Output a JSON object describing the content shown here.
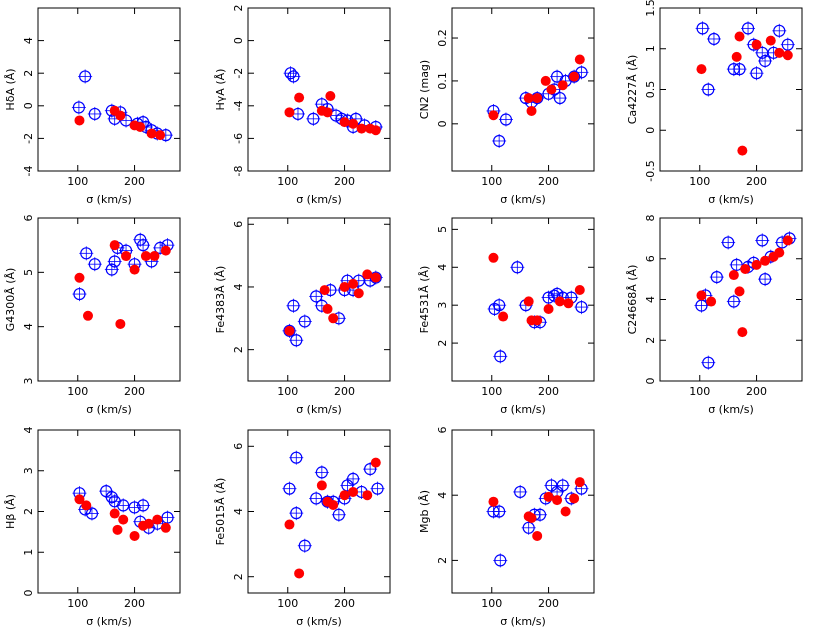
{
  "chart_data": [
    {
      "type": "scatter",
      "ylabel": "HδA (Å)",
      "xlabel": "σ (km/s)",
      "xlim": [
        30,
        280
      ],
      "xticks": [
        100,
        200
      ],
      "ylim": [
        -4,
        6
      ],
      "yticks": [
        -4,
        -2,
        0,
        2,
        4
      ],
      "series": [
        {
          "color": "#0000ff",
          "marker": "open",
          "x": [
            102,
            113,
            130,
            160,
            165,
            175,
            185,
            205,
            215,
            220,
            230,
            240,
            255
          ],
          "values": [
            -0.1,
            1.8,
            -0.5,
            -0.3,
            -0.8,
            -0.4,
            -0.9,
            -1.1,
            -1.0,
            -1.3,
            -1.5,
            -1.7,
            -1.8
          ]
        },
        {
          "color": "#ff0000",
          "marker": "filled",
          "x": [
            103,
            165,
            175,
            200,
            210,
            230,
            245
          ],
          "values": [
            -0.9,
            -0.3,
            -0.6,
            -1.2,
            -1.3,
            -1.7,
            -1.8
          ]
        }
      ]
    },
    {
      "type": "scatter",
      "ylabel": "HγA (Å)",
      "xlabel": "σ (km/s)",
      "xlim": [
        30,
        280
      ],
      "xticks": [
        100,
        200
      ],
      "ylim": [
        -8,
        2
      ],
      "yticks": [
        -8,
        -6,
        -4,
        -2,
        0,
        2
      ],
      "series": [
        {
          "color": "#0000ff",
          "marker": "open",
          "x": [
            105,
            110,
            118,
            145,
            160,
            170,
            185,
            195,
            205,
            215,
            220,
            235,
            255
          ],
          "values": [
            -2.0,
            -2.2,
            -4.5,
            -4.8,
            -3.9,
            -4.2,
            -4.6,
            -4.8,
            -4.9,
            -5.3,
            -4.8,
            -5.2,
            -5.3
          ]
        },
        {
          "color": "#ff0000",
          "marker": "filled",
          "x": [
            103,
            120,
            160,
            170,
            175,
            200,
            215,
            230,
            245,
            255
          ],
          "values": [
            -4.4,
            -3.5,
            -4.3,
            -4.4,
            -3.4,
            -5.0,
            -5.1,
            -5.4,
            -5.4,
            -5.5
          ]
        }
      ]
    },
    {
      "type": "scatter",
      "ylabel": "CN2 (mag)",
      "xlabel": "σ (km/s)",
      "xlim": [
        30,
        280
      ],
      "xticks": [
        100,
        200
      ],
      "ylim": [
        -0.11,
        0.27
      ],
      "yticks": [
        0,
        0.1,
        0.2
      ],
      "series": [
        {
          "color": "#0000ff",
          "marker": "open",
          "x": [
            103,
            113,
            125,
            160,
            170,
            180,
            200,
            210,
            215,
            220,
            230,
            245,
            258
          ],
          "values": [
            0.03,
            -0.04,
            0.01,
            0.06,
            0.05,
            0.06,
            0.07,
            0.08,
            0.11,
            0.06,
            0.1,
            0.11,
            0.12
          ]
        },
        {
          "color": "#ff0000",
          "marker": "filled",
          "x": [
            103,
            165,
            170,
            180,
            195,
            205,
            225,
            245,
            255
          ],
          "values": [
            0.02,
            0.06,
            0.03,
            0.06,
            0.1,
            0.08,
            0.09,
            0.11,
            0.15
          ]
        }
      ]
    },
    {
      "type": "scatter",
      "ylabel": "Ca4227Å (Å)",
      "xlabel": "σ (km/s)",
      "xlim": [
        30,
        280
      ],
      "xticks": [
        100,
        200
      ],
      "ylim": [
        -0.5,
        1.5
      ],
      "yticks": [
        -0.5,
        0,
        0.5,
        1,
        1.5
      ],
      "series": [
        {
          "color": "#0000ff",
          "marker": "open",
          "x": [
            105,
            115,
            125,
            160,
            170,
            185,
            195,
            200,
            210,
            215,
            230,
            240,
            255
          ],
          "values": [
            1.25,
            0.5,
            1.12,
            0.75,
            0.75,
            1.25,
            1.05,
            0.7,
            0.95,
            0.85,
            0.95,
            1.22,
            1.05
          ]
        },
        {
          "color": "#ff0000",
          "marker": "filled",
          "x": [
            103,
            165,
            170,
            175,
            200,
            225,
            240,
            255
          ],
          "values": [
            0.75,
            0.9,
            1.15,
            -0.25,
            1.05,
            1.1,
            0.95,
            0.92
          ]
        }
      ]
    },
    {
      "type": "scatter",
      "ylabel": "G4300Å (Å)",
      "xlabel": "σ (km/s)",
      "xlim": [
        30,
        280
      ],
      "xticks": [
        100,
        200
      ],
      "ylim": [
        3,
        6
      ],
      "yticks": [
        3,
        4,
        5,
        6
      ],
      "series": [
        {
          "color": "#0000ff",
          "marker": "open",
          "x": [
            103,
            115,
            130,
            160,
            165,
            170,
            185,
            200,
            210,
            215,
            230,
            245,
            258
          ],
          "values": [
            4.6,
            5.35,
            5.15,
            5.05,
            5.2,
            5.45,
            5.4,
            5.15,
            5.6,
            5.5,
            5.2,
            5.45,
            5.5
          ]
        },
        {
          "color": "#ff0000",
          "marker": "filled",
          "x": [
            103,
            118,
            165,
            175,
            185,
            200,
            220,
            235,
            255
          ],
          "values": [
            4.9,
            4.2,
            5.5,
            4.05,
            5.3,
            5.05,
            5.3,
            5.3,
            5.4
          ]
        }
      ]
    },
    {
      "type": "scatter",
      "ylabel": "Fe4383Å (Å)",
      "xlabel": "σ (km/s)",
      "xlim": [
        30,
        280
      ],
      "xticks": [
        100,
        200
      ],
      "ylim": [
        1,
        6.2
      ],
      "yticks": [
        2,
        4,
        6
      ],
      "series": [
        {
          "color": "#0000ff",
          "marker": "open",
          "x": [
            103,
            110,
            115,
            130,
            150,
            160,
            175,
            190,
            200,
            205,
            215,
            225,
            245,
            255
          ],
          "values": [
            2.6,
            3.4,
            2.3,
            2.9,
            3.7,
            3.4,
            3.9,
            3.0,
            3.9,
            4.2,
            3.9,
            4.2,
            4.2,
            4.3
          ]
        },
        {
          "color": "#ff0000",
          "marker": "filled",
          "x": [
            103,
            165,
            170,
            180,
            200,
            215,
            225,
            240,
            255
          ],
          "values": [
            2.6,
            3.9,
            3.3,
            3.0,
            4.0,
            4.1,
            3.8,
            4.4,
            4.3
          ]
        }
      ]
    },
    {
      "type": "scatter",
      "ylabel": "Fe4531Å (Å)",
      "xlabel": "σ (km/s)",
      "xlim": [
        30,
        280
      ],
      "xticks": [
        100,
        200
      ],
      "ylim": [
        1,
        5.3
      ],
      "yticks": [
        2,
        3,
        4,
        5
      ],
      "series": [
        {
          "color": "#0000ff",
          "marker": "open",
          "x": [
            105,
            113,
            115,
            145,
            160,
            175,
            185,
            200,
            210,
            215,
            225,
            240,
            258
          ],
          "values": [
            2.9,
            3.0,
            1.65,
            4.0,
            3.0,
            2.55,
            2.55,
            3.2,
            3.25,
            3.3,
            3.2,
            3.2,
            2.95
          ]
        },
        {
          "color": "#ff0000",
          "marker": "filled",
          "x": [
            103,
            120,
            165,
            170,
            180,
            200,
            220,
            235,
            255
          ],
          "values": [
            4.25,
            2.7,
            3.1,
            2.6,
            2.6,
            2.9,
            3.1,
            3.05,
            3.4
          ]
        }
      ]
    },
    {
      "type": "scatter",
      "ylabel": "C24668Å (Å)",
      "xlabel": "σ (km/s)",
      "xlim": [
        30,
        280
      ],
      "xticks": [
        100,
        200
      ],
      "ylim": [
        0,
        8
      ],
      "yticks": [
        0,
        2,
        4,
        6,
        8
      ],
      "series": [
        {
          "color": "#0000ff",
          "marker": "open",
          "x": [
            103,
            110,
            115,
            130,
            150,
            160,
            165,
            185,
            195,
            210,
            215,
            225,
            245,
            258
          ],
          "values": [
            3.7,
            4.2,
            0.9,
            5.1,
            6.8,
            3.9,
            5.7,
            5.6,
            5.8,
            6.9,
            5.0,
            6.1,
            6.8,
            7.0
          ]
        },
        {
          "color": "#ff0000",
          "marker": "filled",
          "x": [
            103,
            120,
            160,
            170,
            175,
            180,
            200,
            215,
            230,
            240,
            255
          ],
          "values": [
            4.2,
            3.9,
            5.2,
            4.4,
            2.4,
            5.5,
            5.7,
            5.9,
            6.1,
            6.3,
            6.9
          ]
        }
      ]
    },
    {
      "type": "scatter",
      "ylabel": "Hβ (Å)",
      "xlabel": "σ (km/s)",
      "xlim": [
        30,
        280
      ],
      "xticks": [
        100,
        200
      ],
      "ylim": [
        0,
        4
      ],
      "yticks": [
        0,
        1,
        2,
        3,
        4
      ],
      "series": [
        {
          "color": "#0000ff",
          "marker": "open",
          "x": [
            103,
            113,
            125,
            150,
            160,
            165,
            180,
            200,
            210,
            215,
            225,
            240,
            258
          ],
          "values": [
            2.45,
            2.05,
            1.95,
            2.5,
            2.35,
            2.25,
            2.15,
            2.1,
            1.75,
            2.15,
            1.6,
            1.7,
            1.85
          ]
        },
        {
          "color": "#ff0000",
          "marker": "filled",
          "x": [
            103,
            115,
            165,
            170,
            180,
            200,
            215,
            225,
            240,
            255
          ],
          "values": [
            2.3,
            2.15,
            1.95,
            1.55,
            1.8,
            1.4,
            1.65,
            1.7,
            1.8,
            1.6
          ]
        }
      ]
    },
    {
      "type": "scatter",
      "ylabel": "Fe5015Å (Å)",
      "xlabel": "σ (km/s)",
      "xlim": [
        30,
        280
      ],
      "xticks": [
        100,
        200
      ],
      "ylim": [
        1.5,
        6.5
      ],
      "yticks": [
        2,
        4,
        6
      ],
      "series": [
        {
          "color": "#0000ff",
          "marker": "open",
          "x": [
            103,
            115,
            115,
            130,
            150,
            160,
            170,
            180,
            190,
            200,
            205,
            215,
            230,
            245,
            258
          ],
          "values": [
            4.7,
            5.65,
            3.95,
            2.95,
            4.4,
            5.2,
            4.3,
            4.3,
            3.9,
            4.4,
            4.8,
            5.0,
            4.6,
            5.3,
            4.7
          ]
        },
        {
          "color": "#ff0000",
          "marker": "filled",
          "x": [
            103,
            120,
            160,
            170,
            180,
            200,
            215,
            240,
            255
          ],
          "values": [
            3.6,
            2.1,
            4.8,
            4.3,
            4.2,
            4.5,
            4.6,
            4.5,
            5.5
          ]
        }
      ]
    },
    {
      "type": "scatter",
      "ylabel": "Mgb (Å)",
      "xlabel": "σ (km/s)",
      "xlim": [
        30,
        280
      ],
      "xticks": [
        100,
        200
      ],
      "ylim": [
        1,
        6
      ],
      "yticks": [
        2,
        4,
        6
      ],
      "series": [
        {
          "color": "#0000ff",
          "marker": "open",
          "x": [
            103,
            113,
            115,
            150,
            165,
            175,
            185,
            195,
            205,
            215,
            225,
            240,
            258
          ],
          "values": [
            3.5,
            3.5,
            2.0,
            4.1,
            3.0,
            3.4,
            3.4,
            3.9,
            4.3,
            4.1,
            4.3,
            3.9,
            4.2
          ]
        },
        {
          "color": "#ff0000",
          "marker": "filled",
          "x": [
            103,
            165,
            170,
            180,
            200,
            215,
            230,
            245,
            255
          ],
          "values": [
            3.8,
            3.35,
            3.3,
            2.75,
            3.95,
            3.85,
            3.5,
            3.9,
            4.4
          ]
        }
      ]
    }
  ]
}
